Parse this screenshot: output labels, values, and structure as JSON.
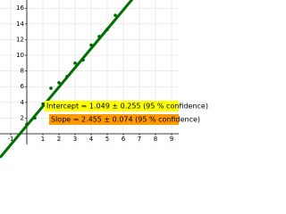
{
  "chart_data": {
    "type": "scatter",
    "x": [
      0.0,
      0.5,
      1.0,
      1.5,
      2.0,
      2.5,
      3.0,
      3.5,
      4.0,
      4.5,
      5.0,
      5.5
    ],
    "values": [
      1.2,
      2.0,
      3.8,
      5.8,
      6.5,
      7.3,
      9.0,
      9.4,
      11.3,
      12.4,
      13.3,
      15.1
    ],
    "color": "#006400",
    "fit": {
      "intercept": 1.049,
      "slope": 2.455,
      "color": "#007000"
    },
    "annotations": [
      {
        "text": "Intercept = 1.049 ± 0.255 (95 % confidence)",
        "color": "#ffff00"
      },
      {
        "text": "Slope = 2.455 ± 0.074 (95 % confidence)",
        "color": "#ff9900"
      }
    ],
    "xlim": [
      -1.667,
      9.444
    ],
    "ylim": [
      -1.364,
      17.045
    ],
    "xticks": [
      -1,
      1,
      2,
      3,
      4,
      5,
      6,
      7,
      8,
      9
    ],
    "yticks": [
      2,
      4,
      6,
      8,
      10,
      12,
      14,
      16
    ],
    "grid": true
  }
}
